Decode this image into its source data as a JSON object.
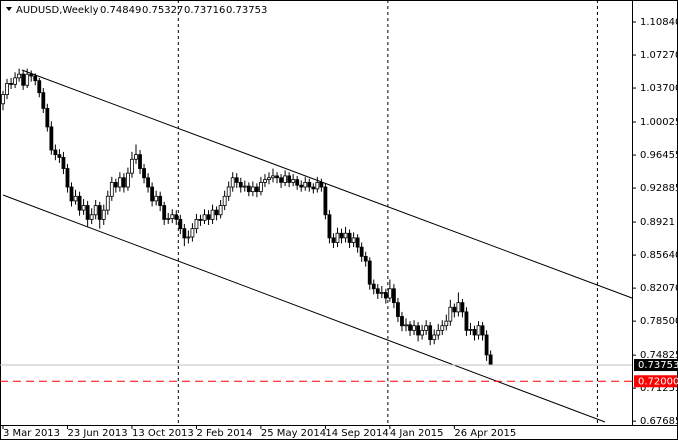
{
  "chart_data": {
    "type": "candlestick",
    "symbol": "AUDUSD,Weekly",
    "categories": [
      "3 Mar 2013",
      null,
      null,
      null,
      null,
      null,
      null,
      null,
      null,
      null,
      null,
      null,
      null,
      null,
      null,
      null,
      "23 Jun 2013",
      null,
      null,
      null,
      null,
      null,
      null,
      null,
      null,
      null,
      null,
      null,
      null,
      null,
      null,
      null,
      "13 Oct 2013",
      null,
      null,
      null,
      null,
      null,
      null,
      null,
      null,
      null,
      null,
      null,
      null,
      null,
      null,
      null,
      "2 Feb 2014",
      null,
      null,
      null,
      null,
      null,
      null,
      null,
      null,
      null,
      null,
      null,
      null,
      null,
      null,
      null,
      "25 May 2014",
      null,
      null,
      null,
      null,
      null,
      null,
      null,
      null,
      null,
      null,
      null,
      null,
      null,
      null,
      null,
      "14 Sep 2014",
      null,
      null,
      null,
      null,
      null,
      null,
      null,
      null,
      null,
      null,
      null,
      null,
      null,
      null,
      null,
      "4 Jan 2015",
      null,
      null,
      null,
      null,
      null,
      null,
      null,
      null,
      null,
      null,
      null,
      null,
      null,
      null,
      null,
      "26 Apr 2015",
      null,
      null,
      null,
      null,
      null,
      null,
      null,
      null,
      null
    ],
    "ohlc": [
      [
        1.02,
        1.034,
        1.013,
        1.03
      ],
      [
        1.03,
        1.047,
        1.025,
        1.042
      ],
      [
        1.042,
        1.048,
        1.036,
        1.041
      ],
      [
        1.041,
        1.054,
        1.037,
        1.048
      ],
      [
        1.048,
        1.058,
        1.044,
        1.052
      ],
      [
        1.052,
        1.056,
        1.035,
        1.04
      ],
      [
        1.04,
        1.058,
        1.037,
        1.052
      ],
      [
        1.052,
        1.056,
        1.044,
        1.05
      ],
      [
        1.05,
        1.053,
        1.04,
        1.045
      ],
      [
        1.045,
        1.048,
        1.027,
        1.032
      ],
      [
        1.032,
        1.037,
        1.01,
        1.015
      ],
      [
        1.015,
        1.02,
        0.99,
        0.995
      ],
      [
        0.995,
        1.001,
        0.965,
        0.97
      ],
      [
        0.97,
        0.976,
        0.959,
        0.965
      ],
      [
        0.965,
        0.971,
        0.956,
        0.962
      ],
      [
        0.962,
        0.968,
        0.944,
        0.95
      ],
      [
        0.95,
        0.955,
        0.924,
        0.93
      ],
      [
        0.93,
        0.935,
        0.909,
        0.915
      ],
      [
        0.915,
        0.927,
        0.911,
        0.92
      ],
      [
        0.92,
        0.925,
        0.899,
        0.905
      ],
      [
        0.905,
        0.917,
        0.9,
        0.91
      ],
      [
        0.91,
        0.915,
        0.887,
        0.895
      ],
      [
        0.895,
        0.907,
        0.89,
        0.9
      ],
      [
        0.9,
        0.916,
        0.895,
        0.91
      ],
      [
        0.91,
        0.914,
        0.885,
        0.895
      ],
      [
        0.895,
        0.911,
        0.889,
        0.905
      ],
      [
        0.905,
        0.926,
        0.9,
        0.92
      ],
      [
        0.92,
        0.941,
        0.915,
        0.935
      ],
      [
        0.935,
        0.939,
        0.924,
        0.93
      ],
      [
        0.93,
        0.946,
        0.925,
        0.94
      ],
      [
        0.94,
        0.945,
        0.924,
        0.93
      ],
      [
        0.93,
        0.951,
        0.926,
        0.945
      ],
      [
        0.945,
        0.968,
        0.94,
        0.96
      ],
      [
        0.96,
        0.976,
        0.955,
        0.965
      ],
      [
        0.965,
        0.97,
        0.944,
        0.95
      ],
      [
        0.95,
        0.955,
        0.934,
        0.94
      ],
      [
        0.94,
        0.945,
        0.924,
        0.93
      ],
      [
        0.93,
        0.935,
        0.909,
        0.915
      ],
      [
        0.915,
        0.926,
        0.91,
        0.92
      ],
      [
        0.92,
        0.925,
        0.904,
        0.91
      ],
      [
        0.91,
        0.914,
        0.889,
        0.895
      ],
      [
        0.895,
        0.902,
        0.89,
        0.896
      ],
      [
        0.896,
        0.906,
        0.891,
        0.9
      ],
      [
        0.9,
        0.905,
        0.889,
        0.895
      ],
      [
        0.895,
        0.9,
        0.879,
        0.885
      ],
      [
        0.885,
        0.89,
        0.866,
        0.875
      ],
      [
        0.875,
        0.883,
        0.869,
        0.876
      ],
      [
        0.876,
        0.891,
        0.871,
        0.885
      ],
      [
        0.885,
        0.901,
        0.88,
        0.895
      ],
      [
        0.895,
        0.9,
        0.888,
        0.894
      ],
      [
        0.894,
        0.906,
        0.89,
        0.9
      ],
      [
        0.9,
        0.905,
        0.889,
        0.895
      ],
      [
        0.895,
        0.911,
        0.89,
        0.905
      ],
      [
        0.905,
        0.909,
        0.894,
        0.9
      ],
      [
        0.9,
        0.916,
        0.896,
        0.91
      ],
      [
        0.91,
        0.926,
        0.905,
        0.92
      ],
      [
        0.92,
        0.936,
        0.915,
        0.93
      ],
      [
        0.93,
        0.946,
        0.925,
        0.94
      ],
      [
        0.94,
        0.945,
        0.929,
        0.935
      ],
      [
        0.935,
        0.94,
        0.924,
        0.93
      ],
      [
        0.93,
        0.937,
        0.925,
        0.931
      ],
      [
        0.931,
        0.935,
        0.92,
        0.925
      ],
      [
        0.925,
        0.936,
        0.92,
        0.93
      ],
      [
        0.93,
        0.934,
        0.919,
        0.925
      ],
      [
        0.925,
        0.941,
        0.921,
        0.935
      ],
      [
        0.935,
        0.944,
        0.93,
        0.938
      ],
      [
        0.938,
        0.946,
        0.933,
        0.94
      ],
      [
        0.94,
        0.95,
        0.935,
        0.942
      ],
      [
        0.942,
        0.946,
        0.934,
        0.94
      ],
      [
        0.94,
        0.944,
        0.929,
        0.935
      ],
      [
        0.935,
        0.948,
        0.931,
        0.942
      ],
      [
        0.942,
        0.946,
        0.93,
        0.935
      ],
      [
        0.935,
        0.944,
        0.931,
        0.938
      ],
      [
        0.938,
        0.942,
        0.927,
        0.932
      ],
      [
        0.932,
        0.937,
        0.925,
        0.93
      ],
      [
        0.93,
        0.941,
        0.926,
        0.935
      ],
      [
        0.935,
        0.939,
        0.925,
        0.93
      ],
      [
        0.93,
        0.934,
        0.923,
        0.928
      ],
      [
        0.928,
        0.941,
        0.924,
        0.935
      ],
      [
        0.935,
        0.939,
        0.925,
        0.93
      ],
      [
        0.93,
        0.934,
        0.895,
        0.9
      ],
      [
        0.9,
        0.905,
        0.869,
        0.875
      ],
      [
        0.875,
        0.88,
        0.864,
        0.87
      ],
      [
        0.87,
        0.886,
        0.865,
        0.88
      ],
      [
        0.88,
        0.885,
        0.869,
        0.875
      ],
      [
        0.875,
        0.887,
        0.87,
        0.88
      ],
      [
        0.88,
        0.884,
        0.864,
        0.87
      ],
      [
        0.87,
        0.881,
        0.865,
        0.875
      ],
      [
        0.875,
        0.879,
        0.859,
        0.865
      ],
      [
        0.865,
        0.87,
        0.849,
        0.855
      ],
      [
        0.855,
        0.86,
        0.844,
        0.85
      ],
      [
        0.85,
        0.854,
        0.819,
        0.825
      ],
      [
        0.825,
        0.83,
        0.814,
        0.82
      ],
      [
        0.82,
        0.825,
        0.809,
        0.815
      ],
      [
        0.815,
        0.823,
        0.81,
        0.816
      ],
      [
        0.816,
        0.82,
        0.804,
        0.81
      ],
      [
        0.81,
        0.83,
        0.806,
        0.82
      ],
      [
        0.82,
        0.825,
        0.799,
        0.805
      ],
      [
        0.805,
        0.81,
        0.784,
        0.79
      ],
      [
        0.79,
        0.795,
        0.774,
        0.78
      ],
      [
        0.78,
        0.788,
        0.774,
        0.781
      ],
      [
        0.781,
        0.785,
        0.769,
        0.775
      ],
      [
        0.775,
        0.786,
        0.77,
        0.78
      ],
      [
        0.78,
        0.784,
        0.763,
        0.77
      ],
      [
        0.77,
        0.781,
        0.765,
        0.775
      ],
      [
        0.775,
        0.786,
        0.77,
        0.78
      ],
      [
        0.78,
        0.784,
        0.759,
        0.765
      ],
      [
        0.765,
        0.776,
        0.76,
        0.77
      ],
      [
        0.77,
        0.782,
        0.765,
        0.775
      ],
      [
        0.775,
        0.786,
        0.77,
        0.78
      ],
      [
        0.78,
        0.792,
        0.775,
        0.785
      ],
      [
        0.785,
        0.808,
        0.78,
        0.8
      ],
      [
        0.8,
        0.804,
        0.789,
        0.795
      ],
      [
        0.795,
        0.816,
        0.79,
        0.805
      ],
      [
        0.805,
        0.809,
        0.789,
        0.795
      ],
      [
        0.795,
        0.8,
        0.769,
        0.775
      ],
      [
        0.775,
        0.783,
        0.77,
        0.776
      ],
      [
        0.776,
        0.78,
        0.764,
        0.77
      ],
      [
        0.77,
        0.785,
        0.765,
        0.78
      ],
      [
        0.78,
        0.784,
        0.764,
        0.77
      ],
      [
        0.77,
        0.775,
        0.742,
        0.7485
      ],
      [
        0.74849,
        0.75327,
        0.73716,
        0.73753
      ]
    ],
    "bull_color": "#ffffff",
    "bear_color": "#000000",
    "line_color": "#000000",
    "ylim": [
      0.6727,
      1.1268
    ],
    "yticks": [
      {
        "value": 1.1084,
        "label": "1.10840"
      },
      {
        "value": 1.0727,
        "label": "1.07270"
      },
      {
        "value": 1.037,
        "label": "1.03700"
      },
      1.00025,
      0.96455,
      0.92885,
      0.8921,
      {
        "value": 0.8564,
        "label": "0.85640"
      },
      {
        "value": 0.8207,
        "label": "0.82070"
      },
      {
        "value": 0.785,
        "label": "0.78500"
      },
      0.74825,
      0.71255,
      0.67685
    ],
    "price_line_color": "#c0c0c0",
    "level": {
      "value": 0.72,
      "label": "0.72000"
    },
    "level_color": "#ff0000"
  }
}
